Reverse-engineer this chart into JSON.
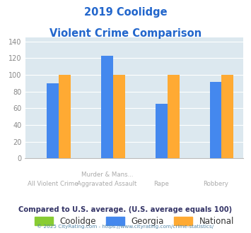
{
  "title_line1": "2019 Coolidge",
  "title_line2": "Violent Crime Comparison",
  "title_color": "#2266cc",
  "categories_top": [
    "",
    "Murder & Mans...",
    "",
    ""
  ],
  "categories_bottom": [
    "All Violent Crime",
    "Aggravated Assault",
    "Rape",
    "Robbery"
  ],
  "series": {
    "Coolidge": [
      0,
      0,
      0,
      0
    ],
    "Georgia": [
      90,
      123,
      65,
      92
    ],
    "National": [
      100,
      100,
      100,
      100
    ]
  },
  "colors": {
    "Coolidge": "#88cc33",
    "Georgia": "#4488ee",
    "National": "#ffaa33"
  },
  "ylim": [
    0,
    145
  ],
  "yticks": [
    0,
    20,
    40,
    60,
    80,
    100,
    120,
    140
  ],
  "plot_bg_color": "#dce8ef",
  "grid_color": "#ffffff",
  "footer_text": "Compared to U.S. average. (U.S. average equals 100)",
  "footer_color": "#333366",
  "copyright_text": "© 2025 CityRating.com - https://www.cityrating.com/crime-statistics/",
  "copyright_color": "#5588aa",
  "bar_width": 0.22
}
